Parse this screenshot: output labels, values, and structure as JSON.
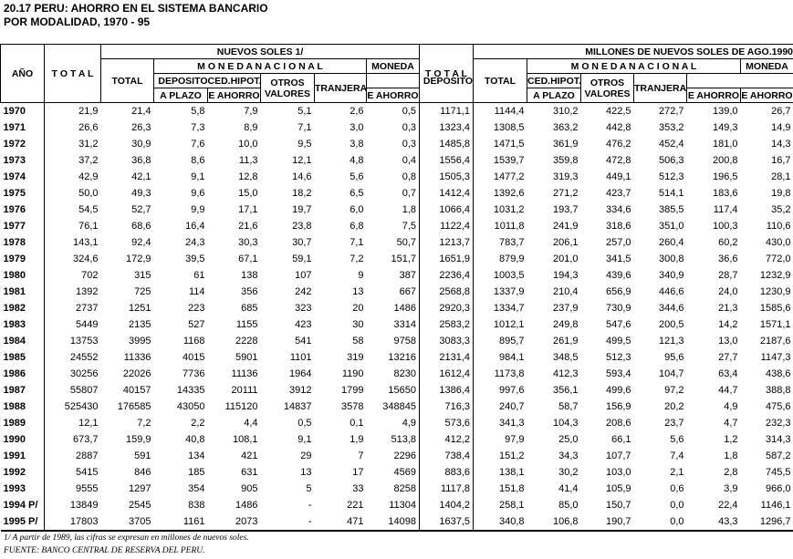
{
  "header": {
    "title": "20.17  PERU: AHORRO EN EL SISTEMA BANCARIO",
    "subtitle": "POR MODALIDAD, 1970 - 95"
  },
  "table": {
    "headers": {
      "year": "AÑO",
      "total": "T O T A L",
      "group1": "NUEVOS SOLES  1/",
      "group2": "MILLONES DE NUEVOS SOLES DE AGO.1990",
      "sub_total": "TOTAL",
      "national": "M O N E D A   N A C I O N A L",
      "foreign_top": "MONEDA",
      "foreign_bottom": "TRANJERA",
      "deposits": "DEPOSITO",
      "mortgage": "CED.HIPOT.",
      "others": "OTROS VALORES",
      "term": "A  PLAZO",
      "savings": "E AHORRO",
      "mortgage_savings": "E AHORRO"
    },
    "rows": [
      [
        "1970",
        "21,9",
        "21,4",
        "5,8",
        "7,9",
        "5,1",
        "2,6",
        "0,5",
        "1171,1",
        "1144,4",
        "310,2",
        "422,5",
        "272,7",
        "139,0",
        "26,7"
      ],
      [
        "1971",
        "26,6",
        "26,3",
        "7,3",
        "8,9",
        "7,1",
        "3,0",
        "0,3",
        "1323,4",
        "1308,5",
        "363,2",
        "442,8",
        "353,2",
        "149,3",
        "14,9"
      ],
      [
        "1972",
        "31,2",
        "30,9",
        "7,6",
        "10,0",
        "9,5",
        "3,8",
        "0,3",
        "1485,8",
        "1471,5",
        "361,9",
        "476,2",
        "452,4",
        "181,0",
        "14,3"
      ],
      [
        "1973",
        "37,2",
        "36,8",
        "8,6",
        "11,3",
        "12,1",
        "4,8",
        "0,4",
        "1556,4",
        "1539,7",
        "359,8",
        "472,8",
        "506,3",
        "200,8",
        "16,7"
      ],
      [
        "1974",
        "42,9",
        "42,1",
        "9,1",
        "12,8",
        "14,6",
        "5,6",
        "0,8",
        "1505,3",
        "1477,2",
        "319,3",
        "449,1",
        "512,3",
        "196,5",
        "28,1"
      ],
      [
        "1975",
        "50,0",
        "49,3",
        "9,6",
        "15,0",
        "18,2",
        "6,5",
        "0,7",
        "1412,4",
        "1392,6",
        "271,2",
        "423,7",
        "514,1",
        "183,6",
        "19,8"
      ],
      [
        "1976",
        "54,5",
        "52,7",
        "9,9",
        "17,1",
        "19,7",
        "6,0",
        "1,8",
        "1066,4",
        "1031,2",
        "193,7",
        "334,6",
        "385,5",
        "117,4",
        "35,2"
      ],
      [
        "1977",
        "76,1",
        "68,6",
        "16,4",
        "21,6",
        "23,8",
        "6,8",
        "7,5",
        "1122,4",
        "1011,8",
        "241,9",
        "318,6",
        "351,0",
        "100,3",
        "110,6"
      ],
      [
        "1978",
        "143,1",
        "92,4",
        "24,3",
        "30,3",
        "30,7",
        "7,1",
        "50,7",
        "1213,7",
        "783,7",
        "206,1",
        "257,0",
        "260,4",
        "60,2",
        "430,0"
      ],
      [
        "1979",
        "324,6",
        "172,9",
        "39,5",
        "67,1",
        "59,1",
        "7,2",
        "151,7",
        "1651,9",
        "879,9",
        "201,0",
        "341,5",
        "300,8",
        "36,6",
        "772,0"
      ],
      [
        "1980",
        "702",
        "315",
        "61",
        "138",
        "107",
        "9",
        "387",
        "2236,4",
        "1003,5",
        "194,3",
        "439,6",
        "340,9",
        "28,7",
        "1232,9"
      ],
      [
        "1981",
        "1392",
        "725",
        "114",
        "356",
        "242",
        "13",
        "667",
        "2568,8",
        "1337,9",
        "210,4",
        "656,9",
        "446,6",
        "24,0",
        "1230,9"
      ],
      [
        "1982",
        "2737",
        "1251",
        "223",
        "685",
        "323",
        "20",
        "1486",
        "2920,3",
        "1334,7",
        "237,9",
        "730,9",
        "344,6",
        "21,3",
        "1585,6"
      ],
      [
        "1983",
        "5449",
        "2135",
        "527",
        "1155",
        "423",
        "30",
        "3314",
        "2583,2",
        "1012,1",
        "249,8",
        "547,6",
        "200,5",
        "14,2",
        "1571,1"
      ],
      [
        "1984",
        "13753",
        "3995",
        "1168",
        "2228",
        "541",
        "58",
        "9758",
        "3083,3",
        "895,7",
        "261,9",
        "499,5",
        "121,3",
        "13,0",
        "2187,6"
      ],
      [
        "1985",
        "24552",
        "11336",
        "4015",
        "5901",
        "1101",
        "319",
        "13216",
        "2131,4",
        "984,1",
        "348,5",
        "512,3",
        "95,6",
        "27,7",
        "1147,3"
      ],
      [
        "1986",
        "30256",
        "22026",
        "7736",
        "11136",
        "1964",
        "1190",
        "8230",
        "1612,4",
        "1173,8",
        "412,3",
        "593,4",
        "104,7",
        "63,4",
        "438,6"
      ],
      [
        "1987",
        "55807",
        "40157",
        "14335",
        "20111",
        "3912",
        "1799",
        "15650",
        "1386,4",
        "997,6",
        "356,1",
        "499,6",
        "97,2",
        "44,7",
        "388,8"
      ],
      [
        "1988",
        "525430",
        "176585",
        "43050",
        "115120",
        "14837",
        "3578",
        "348845",
        "716,3",
        "240,7",
        "58,7",
        "156,9",
        "20,2",
        "4,9",
        "475,6"
      ],
      [
        "1989",
        "12,1",
        "7,2",
        "2,2",
        "4,4",
        "0,5",
        "0,1",
        "4,9",
        "573,6",
        "341,3",
        "104,3",
        "208,6",
        "23,7",
        "4,7",
        "232,3"
      ],
      [
        "1990",
        "673,7",
        "159,9",
        "40,8",
        "108,1",
        "9,1",
        "1,9",
        "513,8",
        "412,2",
        "97,9",
        "25,0",
        "66,1",
        "5,6",
        "1,2",
        "314,3"
      ],
      [
        "1991",
        "2887",
        "591",
        "134",
        "421",
        "29",
        "7",
        "2296",
        "738,4",
        "151,2",
        "34,3",
        "107,7",
        "7,4",
        "1,8",
        "587,2"
      ],
      [
        "1992",
        "5415",
        "846",
        "185",
        "631",
        "13",
        "17",
        "4569",
        "883,6",
        "138,1",
        "30,2",
        "103,0",
        "2,1",
        "2,8",
        "745,5"
      ],
      [
        "1993",
        "9555",
        "1297",
        "354",
        "905",
        "5",
        "33",
        "8258",
        "1117,8",
        "151,8",
        "41,4",
        "105,9",
        "0,6",
        "3,9",
        "966,0"
      ],
      [
        "1994 P/",
        "13849",
        "2545",
        "838",
        "1486",
        "-",
        "221",
        "11304",
        "1404,2",
        "258,1",
        "85,0",
        "150,7",
        "0,0",
        "22,4",
        "1146,1"
      ],
      [
        "1995 P/",
        "17803",
        "3705",
        "1161",
        "2073",
        "-",
        "471",
        "14098",
        "1637,5",
        "340,8",
        "106,8",
        "190,7",
        "0,0",
        "43,3",
        "1296,7"
      ]
    ]
  },
  "footnotes": [
    "1/ A partir de 1989, las cifras se expresan en millones de nuevos soles.",
    "FUENTE: BANCO CENTRAL DE RESERVA DEL PERU."
  ]
}
